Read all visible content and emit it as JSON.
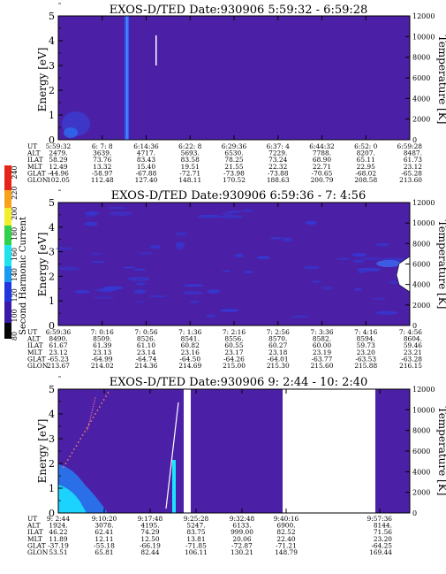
{
  "colorbar": {
    "label": "Second Harmonic Current",
    "ticks": [
      "240",
      "220",
      "200",
      "180",
      "160",
      "140",
      "120",
      "100",
      "80"
    ]
  },
  "colors": {
    "background": "#4b1fa6",
    "streak": "#2e5cf0",
    "bright": "#19e5ff",
    "blank": "#ffffff"
  },
  "chart_data": [
    {
      "type": "heatmap",
      "title": "EXOS-D/TED   Date:930906   5:59:32 - 6:59:28",
      "ylabel": "Energy [eV]",
      "y2label": "Temperature [K]",
      "ylim": [
        0,
        5
      ],
      "y2lim": [
        0,
        12000
      ],
      "yticks": [
        "0",
        "1",
        "2",
        "3",
        "4",
        "5"
      ],
      "y2ticks": [
        "0",
        "2000",
        "4000",
        "6000",
        "8000",
        "10000",
        "12000"
      ],
      "row_labels": [
        "UT",
        "ALT",
        "ILAT",
        "MLT",
        "GLAT",
        "GLON"
      ],
      "columns": [
        [
          "5:59:32",
          "2479.",
          "58.29",
          "12.49",
          "-44.96",
          "102.05"
        ],
        [
          "6: 7: 8",
          "3639.",
          "73.76",
          "13.32",
          "-58.97",
          "112.48"
        ],
        [
          "6:14:36",
          "4717.",
          "83.43",
          "15.40",
          "-67.88",
          "127.40"
        ],
        [
          "6:22: 8",
          "5693.",
          "83.58",
          "19.51",
          "-72.71",
          "148.11"
        ],
        [
          "6:29:36",
          "6530.",
          "78.25",
          "21.55",
          "-73.98",
          "170.52"
        ],
        [
          "6:37: 4",
          "7229.",
          "73.24",
          "22.32",
          "-73.88",
          "188.63"
        ],
        [
          "6:44:32",
          "7788.",
          "68.90",
          "22.71",
          "-70.65",
          "200.79"
        ],
        [
          "6:52: 0",
          "8207.",
          "65.11",
          "22.95",
          "-68.02",
          "208.58"
        ],
        [
          "6:59:28",
          "8487.",
          "61.73",
          "23.12",
          "-65.28",
          "213.60"
        ]
      ]
    },
    {
      "type": "heatmap",
      "title": "EXOS-D/TED   Date:930906   6:59:36 - 7: 4:56",
      "ylabel": "Energy [eV]",
      "y2label": "Temperature [K]",
      "ylim": [
        0,
        5
      ],
      "y2lim": [
        0,
        12000
      ],
      "yticks": [
        "0",
        "1",
        "2",
        "3",
        "4",
        "5"
      ],
      "y2ticks": [
        "0",
        "2000",
        "4000",
        "6000",
        "8000",
        "10000",
        "12000"
      ],
      "row_labels": [
        "UT",
        "ALT",
        "ILAT",
        "MLT",
        "GLAT",
        "GLON"
      ],
      "columns": [
        [
          "6:59:36",
          "8490.",
          "61.67",
          "23.12",
          "-65.23",
          "213.67"
        ],
        [
          "7: 0:16",
          "8509.",
          "61.39",
          "23.13",
          "-64.99",
          "214.02"
        ],
        [
          "7: 0:56",
          "8526.",
          "61.10",
          "23.14",
          "-64.74",
          "214.36"
        ],
        [
          "7: 1:36",
          "8541.",
          "60.82",
          "23.16",
          "-64.50",
          "214.69"
        ],
        [
          "7: 2:16",
          "8556.",
          "60.55",
          "23.17",
          "-64.26",
          "215.00"
        ],
        [
          "7: 2:56",
          "8570.",
          "60.27",
          "23.18",
          "-64.01",
          "215.30"
        ],
        [
          "7: 3:36",
          "8582.",
          "60.00",
          "23.19",
          "-63.77",
          "215.60"
        ],
        [
          "7: 4:16",
          "8594.",
          "59.73",
          "23.20",
          "-63.53",
          "215.88"
        ],
        [
          "7: 4:56",
          "8604.",
          "59.46",
          "23.21",
          "-63.28",
          "216.15"
        ]
      ]
    },
    {
      "type": "heatmap",
      "title": "EXOS-D/TED   Date:930906   9: 2:44 - 10: 2:40",
      "ylabel": "Energy [eV]",
      "y2label": "Temperature [K]",
      "ylim": [
        0,
        5
      ],
      "y2lim": [
        0,
        12000
      ],
      "yticks": [
        "0",
        "1",
        "2",
        "3",
        "4",
        "5"
      ],
      "y2ticks": [
        "0",
        "2000",
        "4000",
        "6000",
        "8000",
        "10000",
        "12000"
      ],
      "row_labels": [
        "UT",
        "ALT",
        "ILAT",
        "MLT",
        "GLAT",
        "GLON"
      ],
      "columns": [
        [
          "9: 2:44",
          "1924.",
          "46.22",
          "11.89",
          "-37.19",
          "53.51"
        ],
        [
          "9:10:20",
          "3078.",
          "62.41",
          "12.11",
          "-55.18",
          "65.81"
        ],
        [
          "9:17:48",
          "4195.",
          "74.29",
          "12.50",
          "-66.19",
          "82.44"
        ],
        [
          "9:25:28",
          "5247.",
          "83.75",
          "13.81",
          "-71.85",
          "106.11"
        ],
        [
          "9:32:48",
          "6133.",
          "999.00",
          "20.06",
          "-72.87",
          "130.21"
        ],
        [
          "9:40:16",
          "6900.",
          "82.52",
          "22.40",
          "-71.21",
          "148.79"
        ],
        [
          "",
          "",
          "",
          "",
          "",
          ""
        ],
        [
          "9:57:36",
          "8144.",
          "71.56",
          "23.20",
          "-64.25",
          "169.44"
        ]
      ]
    }
  ]
}
